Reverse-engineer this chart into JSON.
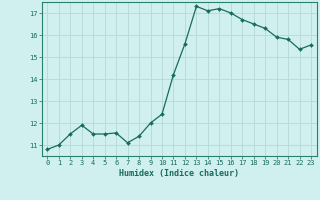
{
  "x": [
    0,
    1,
    2,
    3,
    4,
    5,
    6,
    7,
    8,
    9,
    10,
    11,
    12,
    13,
    14,
    15,
    16,
    17,
    18,
    19,
    20,
    21,
    22,
    23
  ],
  "y": [
    10.8,
    11.0,
    11.5,
    11.9,
    11.5,
    11.5,
    11.55,
    11.1,
    11.4,
    12.0,
    12.4,
    14.2,
    15.6,
    17.3,
    17.1,
    17.2,
    17.0,
    16.7,
    16.5,
    16.3,
    15.9,
    15.8,
    15.35,
    15.55
  ],
  "xlim": [
    -0.5,
    23.5
  ],
  "ylim": [
    10.5,
    17.5
  ],
  "yticks": [
    11,
    12,
    13,
    14,
    15,
    16,
    17
  ],
  "xticks": [
    0,
    1,
    2,
    3,
    4,
    5,
    6,
    7,
    8,
    9,
    10,
    11,
    12,
    13,
    14,
    15,
    16,
    17,
    18,
    19,
    20,
    21,
    22,
    23
  ],
  "xlabel": "Humidex (Indice chaleur)",
  "bg_color": "#cff0ee",
  "grid_color": "#b5d9d5",
  "line_color": "#1a6b5e",
  "marker_color": "#1a6b5e",
  "axis_color": "#2a8070",
  "tick_color": "#1a6b5e",
  "label_color": "#1a6b5e",
  "tick_fontsize": 5.0,
  "xlabel_fontsize": 6.0
}
